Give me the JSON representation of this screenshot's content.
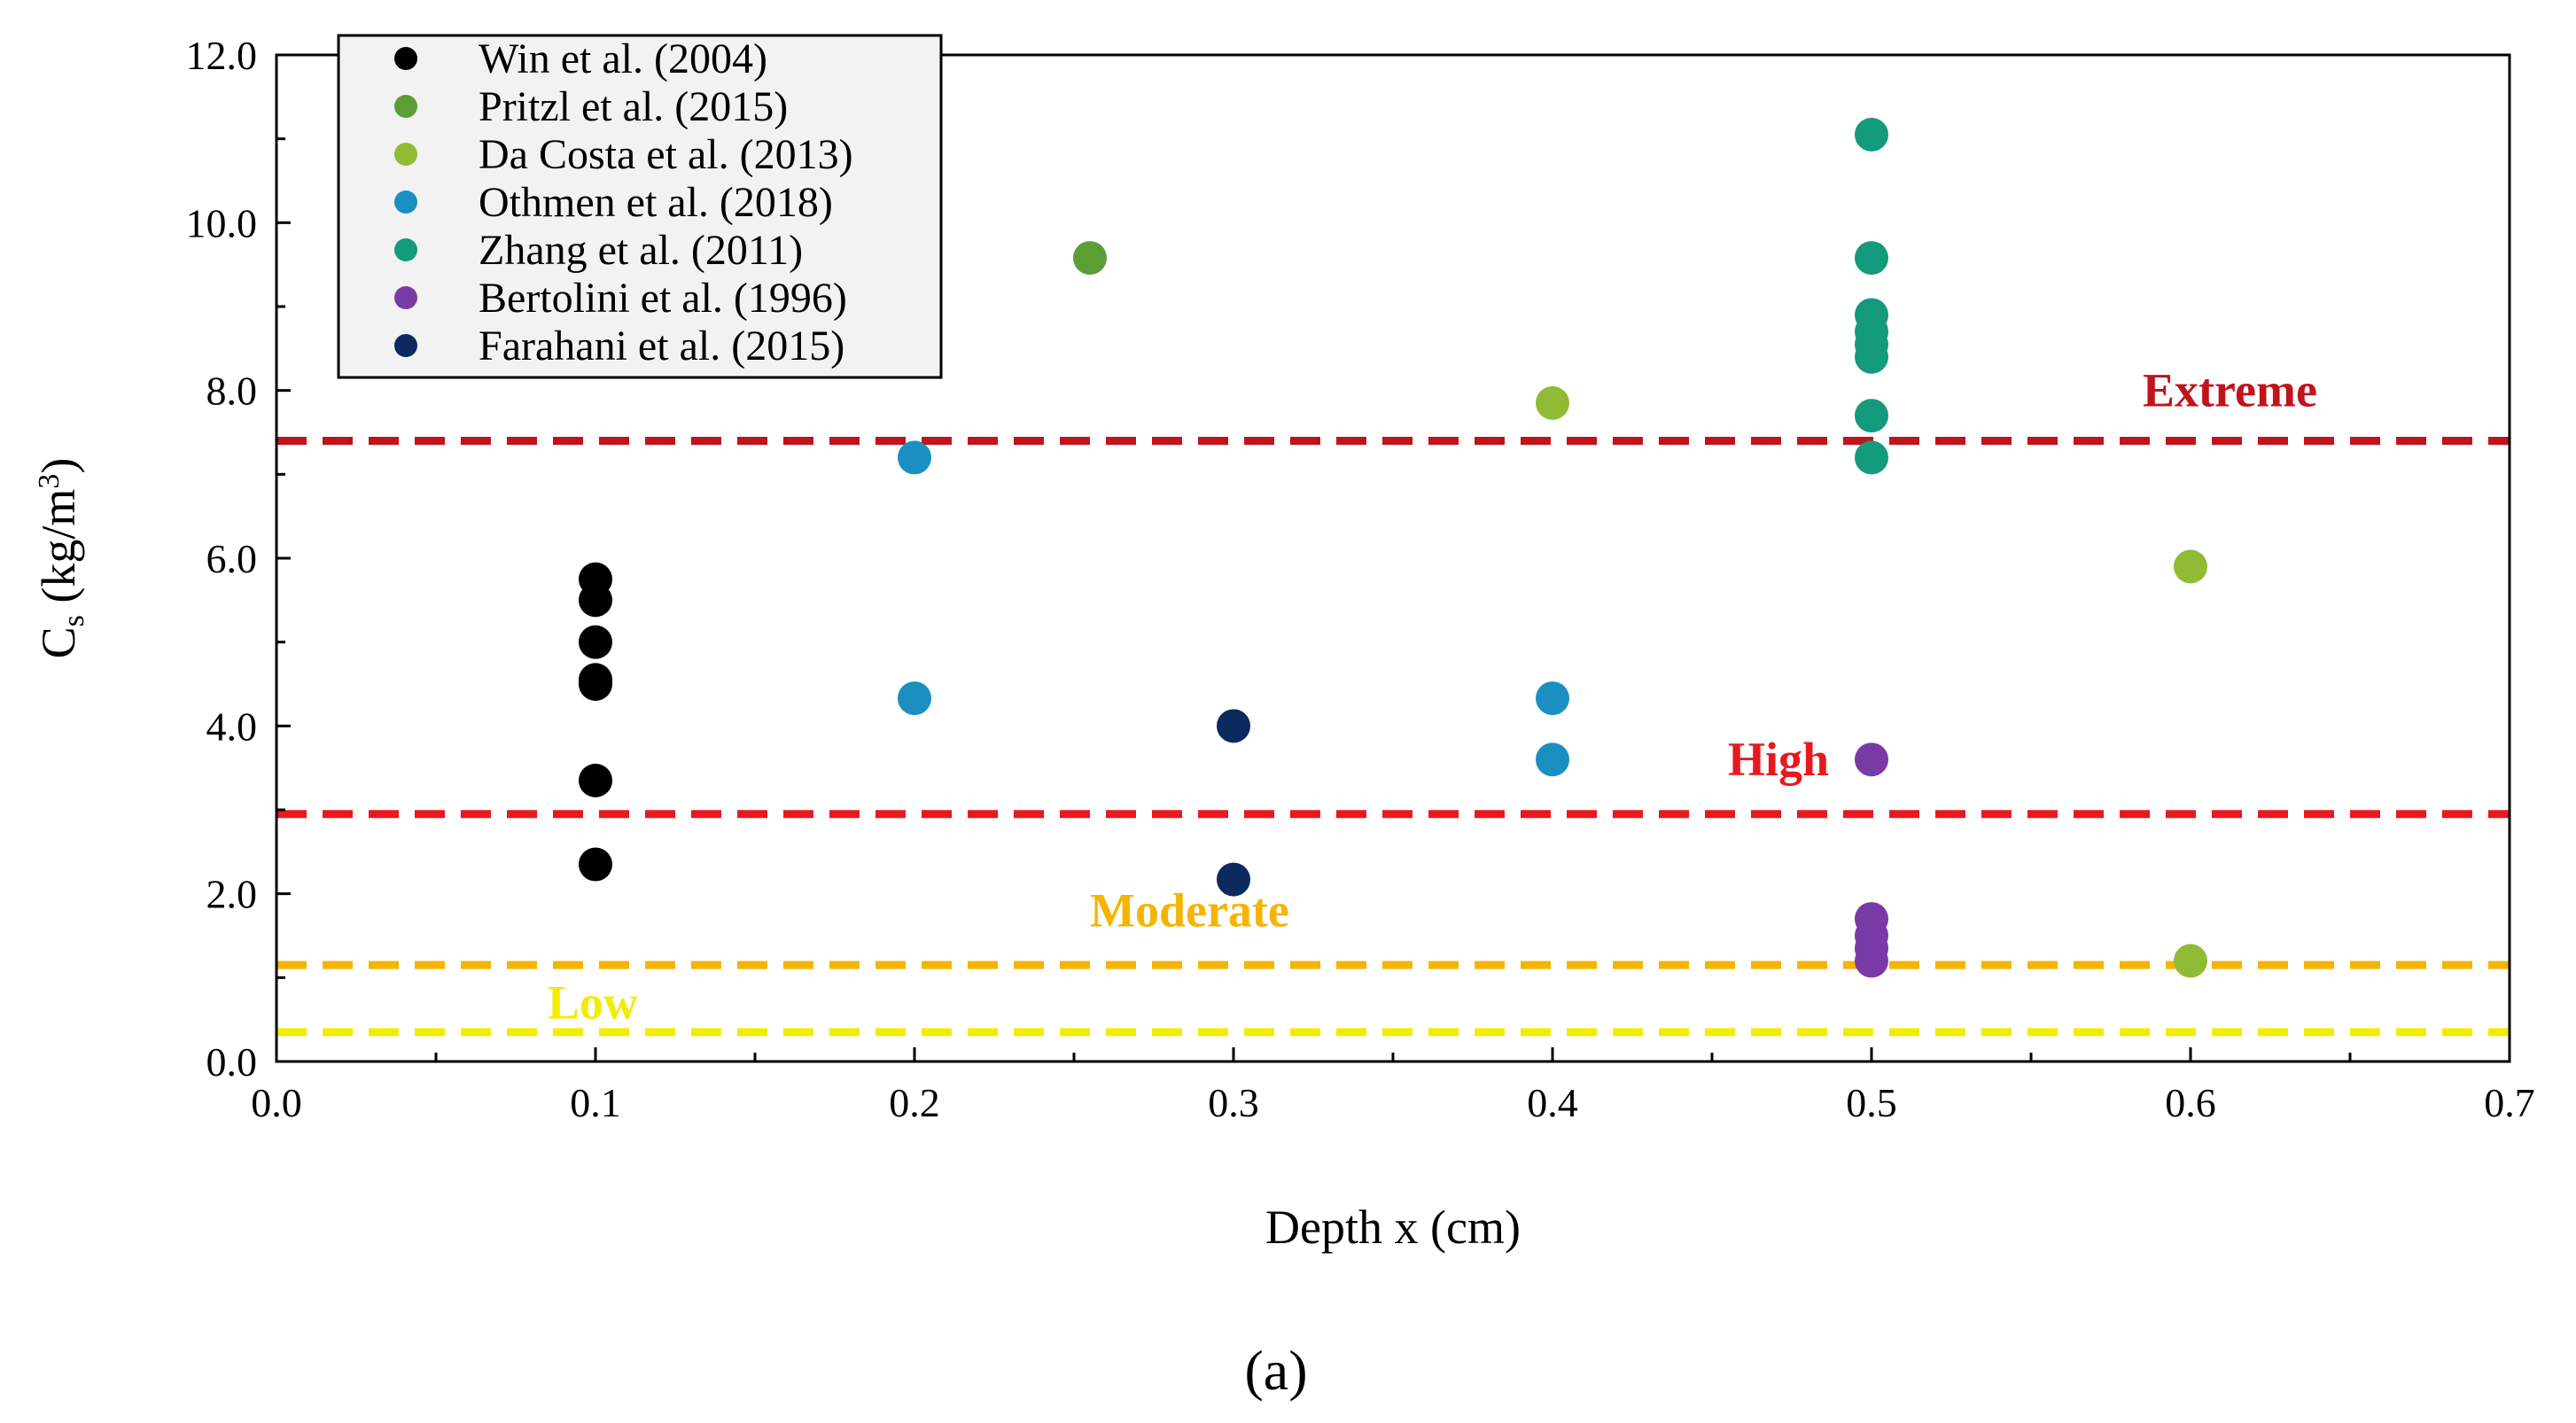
{
  "chart_data": {
    "type": "scatter",
    "title": "",
    "xlabel": "Depth x (cm)",
    "ylabel_main": "C",
    "ylabel_sub": "s",
    "ylabel_rest": " (kg/m",
    "ylabel_sup": "3",
    "ylabel_end": ")",
    "xlim": [
      0.0,
      0.7
    ],
    "ylim": [
      0.0,
      12.0
    ],
    "xticks": [
      "0.0",
      "0.1",
      "0.2",
      "0.3",
      "0.4",
      "0.5",
      "0.6",
      "0.7"
    ],
    "yticks": [
      "0.0",
      "2.0",
      "4.0",
      "6.0",
      "8.0",
      "10.0",
      "12.0"
    ],
    "legend_position": "top-left",
    "series": [
      {
        "name": "Win et al. (2004)",
        "color": "#000000",
        "points": [
          [
            0.1,
            5.75
          ],
          [
            0.1,
            5.5
          ],
          [
            0.1,
            5.0
          ],
          [
            0.1,
            4.55
          ],
          [
            0.1,
            4.5
          ],
          [
            0.1,
            3.35
          ],
          [
            0.1,
            2.35
          ]
        ]
      },
      {
        "name": "Pritzl et al. (2015)",
        "color": "#5c9e35",
        "points": [
          [
            0.255,
            9.58
          ]
        ]
      },
      {
        "name": "Da Costa et al. (2013)",
        "color": "#8fbc34",
        "points": [
          [
            0.4,
            7.85
          ],
          [
            0.6,
            5.9
          ],
          [
            0.6,
            1.2
          ]
        ]
      },
      {
        "name": "Othmen et al. (2018)",
        "color": "#1b8fc1",
        "points": [
          [
            0.2,
            7.2
          ],
          [
            0.2,
            4.33
          ],
          [
            0.4,
            4.33
          ],
          [
            0.4,
            3.6
          ]
        ]
      },
      {
        "name": "Zhang et al. (2011)",
        "color": "#149a7c",
        "points": [
          [
            0.5,
            11.05
          ],
          [
            0.5,
            9.58
          ],
          [
            0.5,
            8.9
          ],
          [
            0.5,
            8.7
          ],
          [
            0.5,
            8.55
          ],
          [
            0.5,
            8.4
          ],
          [
            0.5,
            7.7
          ],
          [
            0.5,
            7.2
          ]
        ]
      },
      {
        "name": "Bertolini et al. (1996)",
        "color": "#7a3aa6",
        "points": [
          [
            0.5,
            3.6
          ],
          [
            0.5,
            1.7
          ],
          [
            0.5,
            1.5
          ],
          [
            0.5,
            1.35
          ],
          [
            0.5,
            1.2
          ]
        ]
      },
      {
        "name": "Farahani et al. (2015)",
        "color": "#0d2a5e",
        "points": [
          [
            0.3,
            4.0
          ],
          [
            0.3,
            2.17
          ]
        ]
      }
    ],
    "thresholds": [
      {
        "label": "Extreme",
        "y": 7.4,
        "color": "#c0141c",
        "label_x": 0.585,
        "label_y": 8.0
      },
      {
        "label": "High",
        "y": 2.95,
        "color": "#e8191e",
        "label_x": 0.455,
        "label_y": 3.6
      },
      {
        "label": "Moderate",
        "y": 1.15,
        "color": "#f5b400",
        "label_x": 0.255,
        "label_y": 1.8
      },
      {
        "label": "Low",
        "y": 0.35,
        "color": "#f2ec00",
        "label_x": 0.085,
        "label_y": 0.7
      }
    ],
    "caption": "(a)"
  }
}
